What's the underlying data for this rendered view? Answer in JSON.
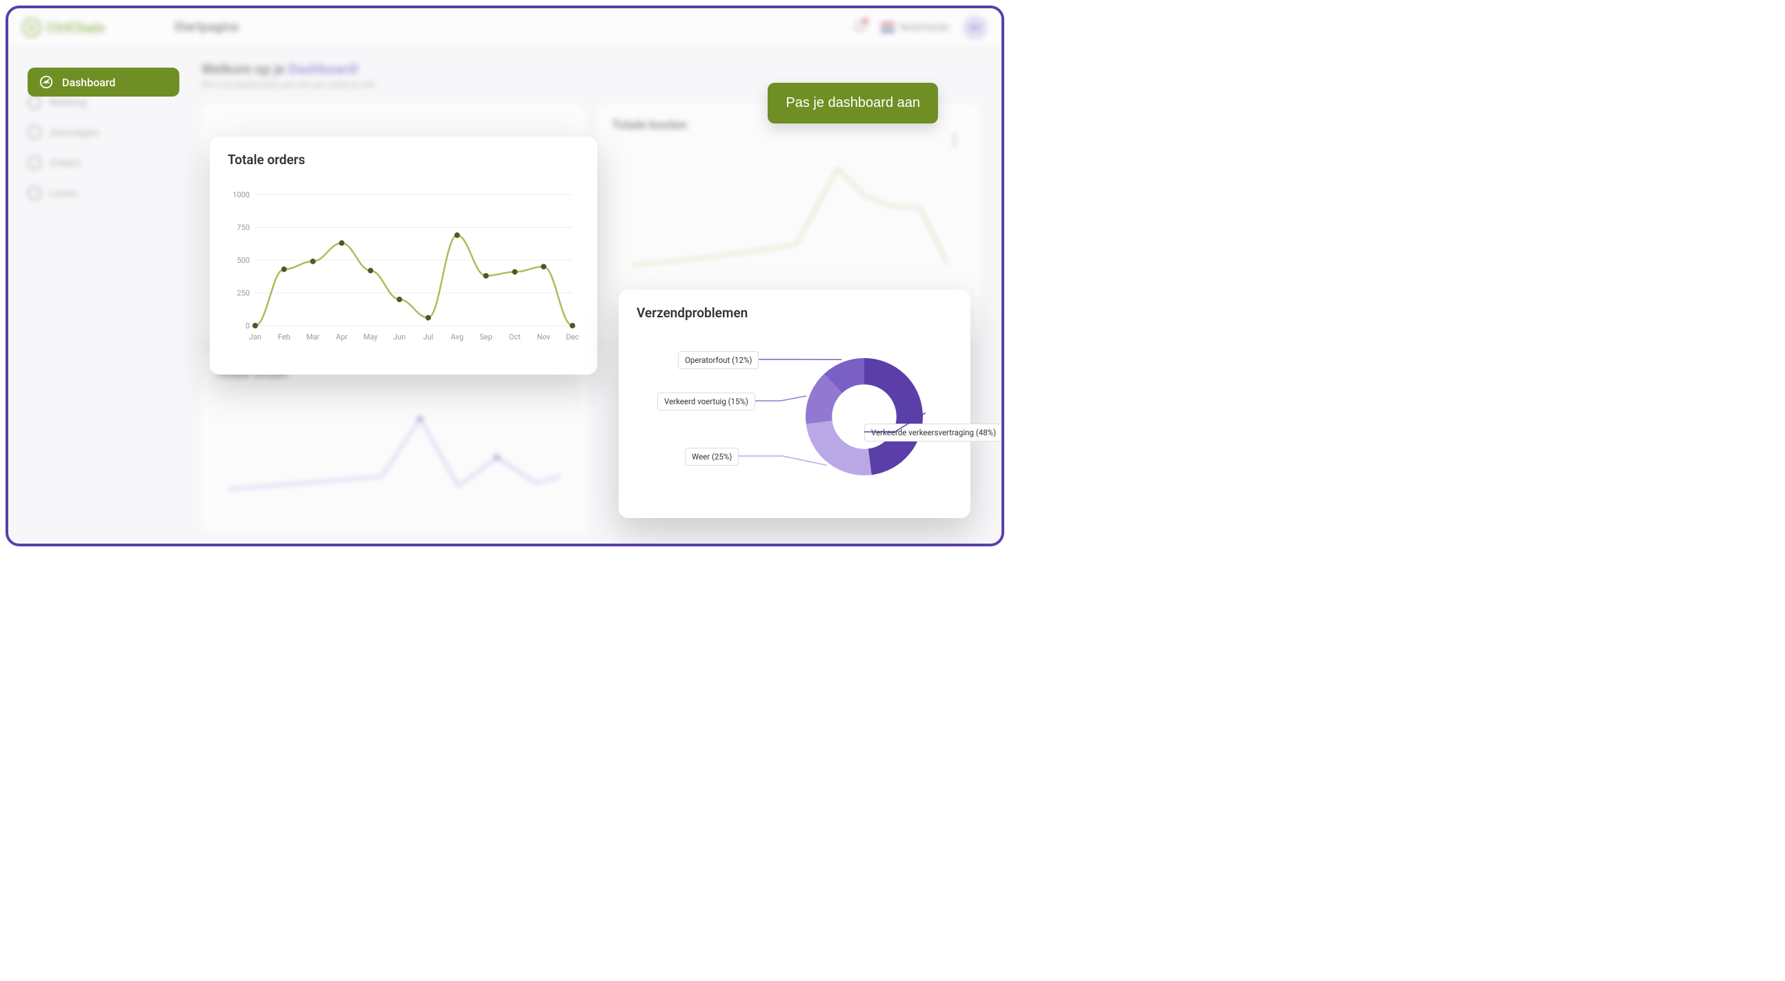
{
  "brand": "CtrlChain",
  "topbar": {
    "page_title": "Startpagina",
    "language_label": "Nederlands",
    "avatar_initials": "BS",
    "notification_count": 1
  },
  "sidebar": {
    "items": [
      {
        "label": "Dashboard",
        "active": true
      },
      {
        "label": "Boeking",
        "active": false
      },
      {
        "label": "Aanvragen",
        "active": false
      },
      {
        "label": "Orders",
        "active": false
      },
      {
        "label": "Lanes",
        "active": false
      }
    ]
  },
  "welcome": {
    "prefix": "Welkom op je ",
    "accent": "Dashboard!",
    "subtitle": "Dit is je dashboard, pas het aan zoals je wilt."
  },
  "customize_button": "Pas je dashboard aan",
  "orders_chart": {
    "title": "Totale orders",
    "type": "line",
    "x_labels": [
      "Jan",
      "Feb",
      "Mar",
      "Apr",
      "May",
      "Jun",
      "Jul",
      "Avg",
      "Sep",
      "Oct",
      "Nov",
      "Dec"
    ],
    "values": [
      0,
      430,
      490,
      630,
      420,
      200,
      60,
      690,
      380,
      410,
      450,
      0
    ],
    "ylim": [
      0,
      1000
    ],
    "ytick_step": 250,
    "line_color": "#a4c05a",
    "point_color": "#4a5a2a",
    "grid_color": "#eeeeee",
    "background_color": "#ffffff",
    "label_color": "#999999",
    "label_fontsize": 11
  },
  "donut_chart": {
    "title": "Verzendproblemen",
    "type": "donut",
    "slices": [
      {
        "label": "Verkeerde verkeersvertraging (48%)",
        "value": 48,
        "color": "#5a3fa8"
      },
      {
        "label": "Weer (25%)",
        "value": 25,
        "color": "#b9a7e6"
      },
      {
        "label": "Verkeerd voertuig (15%)",
        "value": 15,
        "color": "#9179d2"
      },
      {
        "label": "Operatorfout (12%)",
        "value": 12,
        "color": "#7a5fc4"
      }
    ],
    "inner_radius_ratio": 0.55,
    "background_color": "#ffffff",
    "label_border_color": "#dddddd",
    "label_fontsize": 11.5
  },
  "bg_cards": {
    "kosten_title": "Totale kosten",
    "omzet_title": "Totale omzet"
  },
  "colors": {
    "frame_border": "#5a3fa8",
    "primary_green": "#6f8f24",
    "accent_purple": "#7b5fc9"
  }
}
